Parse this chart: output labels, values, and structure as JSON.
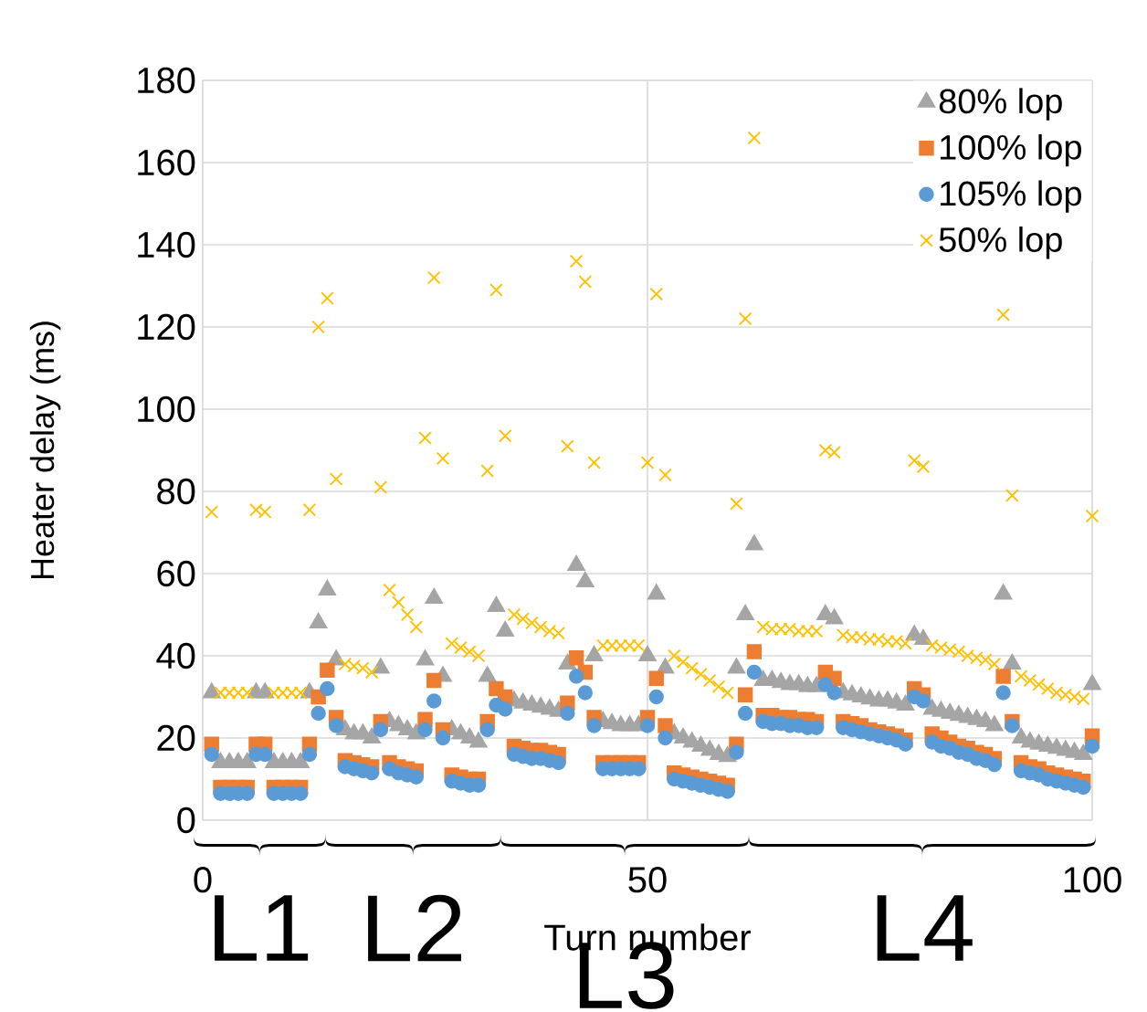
{
  "chart_data": {
    "type": "scatter",
    "xlabel": "Turn number",
    "ylabel": "Heater delay (ms)",
    "xlim": [
      0,
      100
    ],
    "xticks": [
      0,
      50,
      100
    ],
    "ylim": [
      0,
      180
    ],
    "yticks": [
      0,
      20,
      40,
      60,
      80,
      100,
      120,
      140,
      160,
      180
    ],
    "grid": true,
    "legend": "top right",
    "x": [
      1,
      2,
      3,
      4,
      5,
      6,
      7,
      8,
      9,
      10,
      11,
      12,
      13,
      14,
      15,
      16,
      17,
      18,
      19,
      20,
      21,
      22,
      23,
      24,
      25,
      26,
      27,
      28,
      29,
      30,
      31,
      32,
      33,
      34,
      35,
      36,
      37,
      38,
      39,
      40,
      41,
      42,
      43,
      44,
      45,
      46,
      47,
      48,
      49,
      50,
      51,
      52,
      53,
      54,
      55,
      56,
      57,
      58,
      59,
      60,
      61,
      62,
      63,
      64,
      65,
      66,
      67,
      68,
      69,
      70,
      71,
      72,
      73,
      74,
      75,
      76,
      77,
      78,
      79,
      80,
      81,
      82,
      83,
      84,
      85,
      86,
      87,
      88,
      89,
      90,
      91,
      92,
      93,
      94,
      95,
      96,
      97,
      98,
      99,
      100
    ],
    "series": [
      {
        "name": "80% lop",
        "color": "#a5a5a5",
        "marker": "triangle",
        "values": [
          31,
          14,
          14,
          14,
          14,
          31,
          31,
          14,
          14,
          14,
          14,
          31,
          48,
          56,
          39,
          22,
          21,
          21,
          20,
          37,
          24,
          23,
          22,
          21,
          39,
          54,
          35,
          22,
          21,
          20,
          19,
          35,
          52,
          46,
          29,
          28.5,
          28,
          27.5,
          27,
          26.5,
          38,
          62,
          58,
          40,
          24,
          23.5,
          23,
          23,
          23,
          40,
          55,
          37,
          21,
          20,
          19,
          18,
          17,
          16,
          15.5,
          37,
          50,
          67,
          34,
          34,
          33.5,
          33,
          33,
          32.5,
          32.5,
          50,
          49,
          31,
          30.5,
          30,
          29.5,
          29,
          29,
          28.5,
          28,
          45,
          44,
          27,
          26.5,
          26,
          25.5,
          25,
          24.5,
          24,
          23,
          55,
          38,
          20,
          19,
          18.5,
          18,
          17.5,
          17,
          16.5,
          16,
          33
        ]
      },
      {
        "name": "100% lop",
        "color": "#ed7d31",
        "marker": "square",
        "values": [
          18.5,
          8,
          8,
          8,
          8,
          18.5,
          18.5,
          8,
          8,
          8,
          8,
          18.5,
          30,
          36.5,
          25,
          14.5,
          14,
          13.5,
          13,
          24,
          14,
          13,
          12.5,
          12,
          24.5,
          34,
          22,
          11,
          10.5,
          10,
          10,
          24,
          32,
          30,
          18,
          17.5,
          17,
          17,
          16.5,
          16,
          28.5,
          39.5,
          36,
          25,
          14,
          14,
          14,
          14,
          14,
          25,
          34.5,
          23,
          11.5,
          11,
          10.5,
          10,
          9.5,
          9,
          8.5,
          18.5,
          30.5,
          41,
          25.5,
          25.5,
          25,
          25,
          24.5,
          24.5,
          24,
          36,
          34.5,
          24,
          23.5,
          23,
          22,
          21.5,
          21,
          20.5,
          19.5,
          32,
          30.5,
          21,
          20,
          19,
          18,
          17.5,
          16.5,
          16,
          15,
          35,
          24,
          14,
          13,
          12.5,
          11.5,
          11,
          10.5,
          10,
          9.5,
          20.5
        ]
      },
      {
        "name": "105% lop",
        "color": "#5b9bd5",
        "marker": "circle",
        "values": [
          16,
          6.5,
          6.5,
          6.5,
          6.5,
          16,
          16,
          6.5,
          6.5,
          6.5,
          6.5,
          16,
          26,
          32,
          23,
          13,
          12.5,
          12,
          11.5,
          22,
          12.5,
          11.5,
          11,
          10.5,
          22,
          29,
          20,
          9.5,
          9,
          8.5,
          8.5,
          22,
          28,
          27,
          16,
          15.5,
          15,
          15,
          14.5,
          14,
          26,
          35,
          31,
          23,
          12.5,
          12.5,
          12.5,
          12.5,
          12.5,
          23,
          30,
          20,
          10,
          9.5,
          9,
          8.5,
          8,
          7.5,
          7,
          16.5,
          26,
          36,
          24,
          23.5,
          23.5,
          23,
          23,
          22.5,
          22.5,
          33,
          31,
          22.5,
          22,
          21.5,
          21,
          20.5,
          20,
          19.5,
          18.5,
          30,
          29,
          19,
          18,
          17.5,
          16.5,
          16,
          15,
          14.5,
          13.5,
          31,
          23,
          12,
          11.5,
          11,
          10,
          9.5,
          9,
          8.5,
          8,
          18
        ]
      },
      {
        "name": "50% lop",
        "color": "#ffc000",
        "marker": "cross",
        "values": [
          75,
          31,
          31,
          31,
          31,
          75.5,
          75,
          31,
          31,
          31,
          31,
          75.5,
          120,
          127,
          83,
          38,
          37.5,
          37,
          36,
          81,
          56,
          53,
          50,
          47,
          93,
          132,
          88,
          43,
          42,
          41,
          40,
          85,
          129,
          93.5,
          50,
          49,
          48,
          47,
          46,
          45.5,
          91,
          136,
          131,
          87,
          42.5,
          42.5,
          42.5,
          42.5,
          42.5,
          87,
          128,
          84,
          40,
          38.5,
          37,
          35.5,
          34,
          32.5,
          31,
          77,
          122,
          166,
          47,
          46.5,
          46.5,
          46.5,
          46,
          46,
          46,
          90,
          89.5,
          45,
          44.5,
          44.5,
          44,
          44,
          43.5,
          43.5,
          43,
          87.5,
          86,
          42.5,
          42,
          41.5,
          41,
          40,
          39.5,
          39,
          38,
          123,
          79,
          35,
          34,
          33,
          32,
          31,
          30.5,
          30,
          29.5,
          74
        ]
      }
    ],
    "annotations": [
      "L1",
      "L2",
      "L3",
      "L4"
    ]
  }
}
